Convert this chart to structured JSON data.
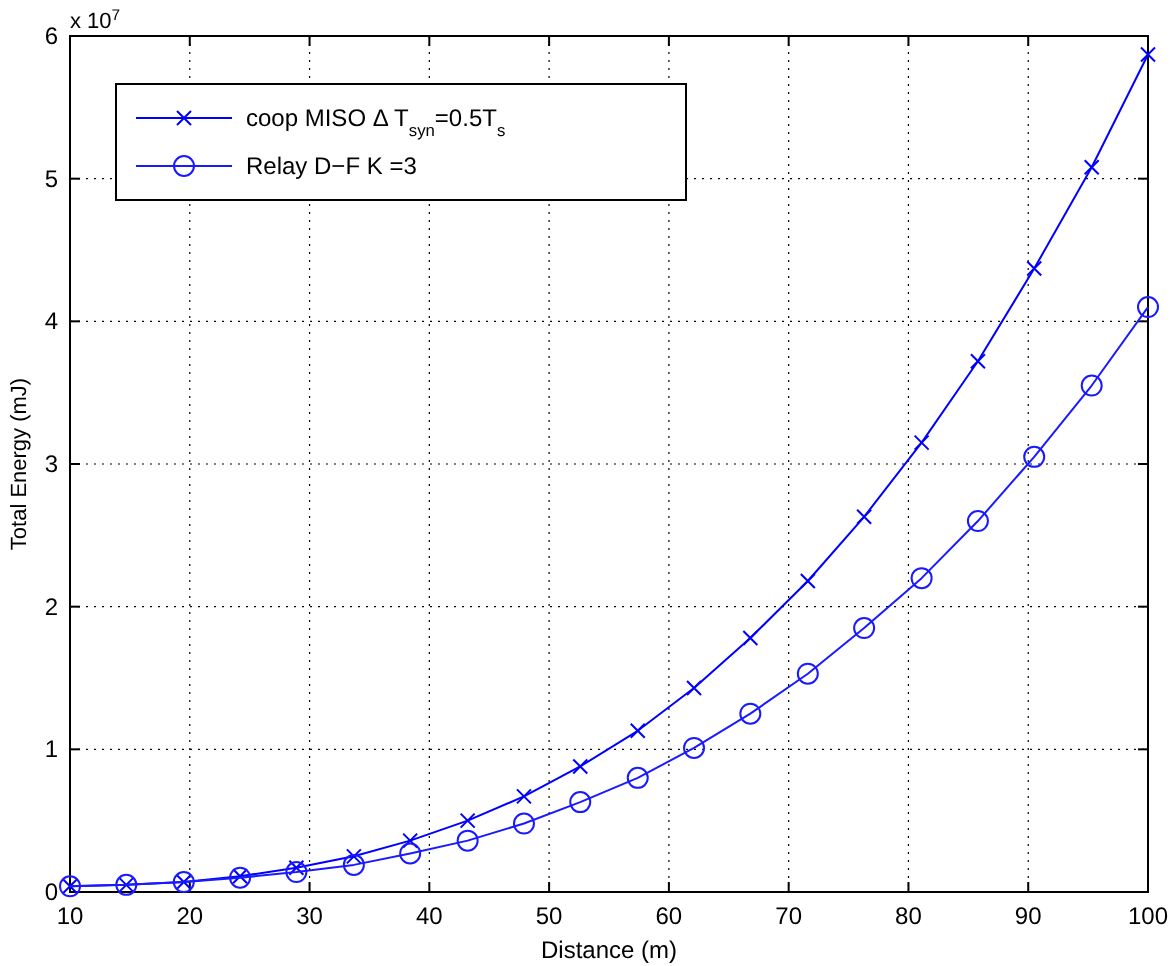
{
  "chart_data": {
    "type": "line",
    "xlabel": "Distance (m)",
    "ylabel": "Total Energy (mJ)",
    "annotations": [
      "x 10$^{7}$"
    ],
    "x": [
      10,
      14.7,
      19.5,
      24.2,
      28.9,
      33.7,
      38.4,
      43.2,
      47.9,
      52.6,
      57.4,
      62.1,
      66.8,
      71.6,
      76.3,
      81.1,
      85.8,
      90.5,
      95.3,
      100
    ],
    "series": [
      {
        "name": "coop MISO Δ T$_{syn}$=0.5T$_{s}$",
        "color": "#0000ff",
        "marker": "cross",
        "values": [
          0.04,
          0.05,
          0.07,
          0.11,
          0.17,
          0.25,
          0.36,
          0.5,
          0.67,
          0.88,
          1.13,
          1.43,
          1.78,
          2.18,
          2.63,
          3.15,
          3.72,
          4.37,
          5.08,
          5.87
        ]
      },
      {
        "name": "Relay D−F K =3",
        "color": "#1a1aff",
        "marker": "circle",
        "values": [
          0.04,
          0.05,
          0.07,
          0.1,
          0.14,
          0.19,
          0.27,
          0.36,
          0.48,
          0.63,
          0.8,
          1.01,
          1.25,
          1.53,
          1.85,
          2.2,
          2.6,
          3.05,
          3.55,
          4.1
        ]
      }
    ],
    "xlim": [
      10,
      100
    ],
    "xticks": [
      10,
      20,
      30,
      40,
      50,
      60,
      70,
      80,
      90,
      100
    ],
    "ylim": [
      0,
      6
    ],
    "yticks": [
      0,
      1,
      2,
      3,
      4,
      5,
      6
    ],
    "grid": true,
    "legend": "top left",
    "line_style": "solid"
  }
}
